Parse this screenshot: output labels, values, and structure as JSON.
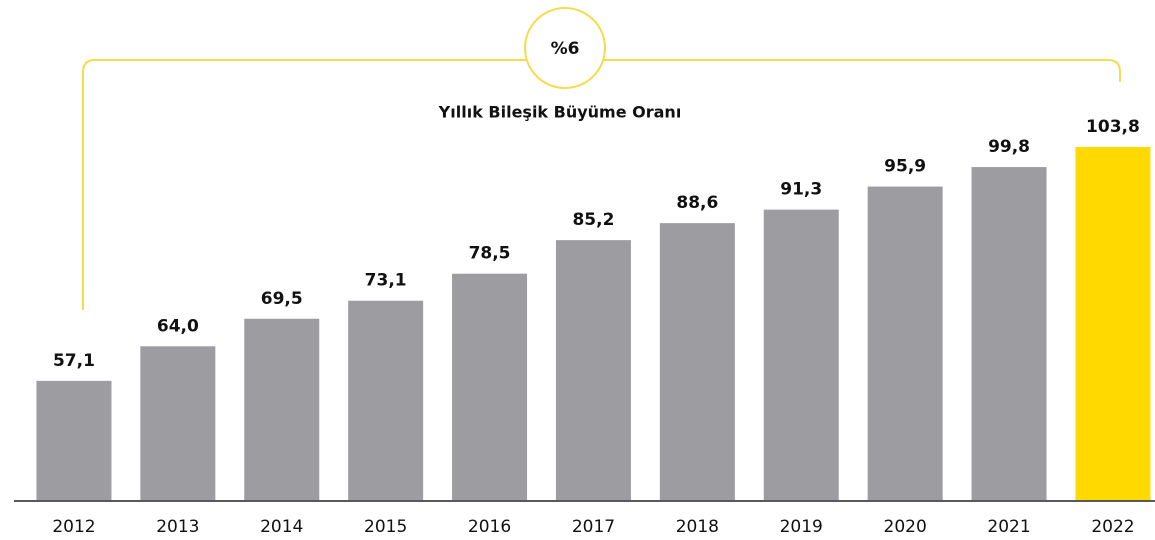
{
  "chart_data": {
    "type": "bar",
    "annotation": "%6",
    "annotation_label": "Yıllık Bileşik Büyüme Oranı",
    "categories": [
      "2012",
      "2013",
      "2014",
      "2015",
      "2016",
      "2017",
      "2018",
      "2019",
      "2020",
      "2021",
      "2022"
    ],
    "values": [
      57.1,
      64.0,
      69.5,
      73.1,
      78.5,
      85.2,
      88.6,
      91.3,
      95.9,
      99.8,
      103.8
    ],
    "value_labels": [
      "57,1",
      "64,0",
      "69,5",
      "73,1",
      "78,5",
      "85,2",
      "88,6",
      "91,3",
      "95,9",
      "99,8",
      "103,8"
    ],
    "colors": [
      "#9d9ca1",
      "#9d9ca1",
      "#9d9ca1",
      "#9d9ca1",
      "#9d9ca1",
      "#9d9ca1",
      "#9d9ca1",
      "#9d9ca1",
      "#9d9ca1",
      "#9d9ca1",
      "#ffd900"
    ],
    "ylim": [
      33.3,
      110
    ],
    "grid": false
  }
}
